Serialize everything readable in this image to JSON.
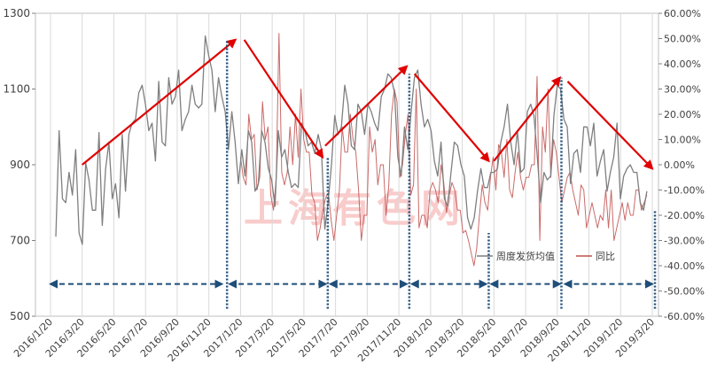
{
  "chart_data": {
    "type": "line",
    "title": "",
    "xlabel": "",
    "ylabel": "",
    "y_left": {
      "range": [
        500,
        1300
      ],
      "ticks": [
        500,
        700,
        900,
        1100,
        1300
      ]
    },
    "y_right": {
      "range": [
        -60,
        60
      ],
      "ticks": [
        -60,
        -50,
        -40,
        -30,
        -20,
        -10,
        0,
        10,
        20,
        30,
        40,
        50,
        60
      ],
      "tick_labels": [
        "-60.00%",
        "-50.00%",
        "-40.00%",
        "-30.00%",
        "-20.00%",
        "-10.00%",
        "0.00%",
        "10.00%",
        "20.00%",
        "30.00%",
        "40.00%",
        "50.00%",
        "60.00%"
      ]
    },
    "x_tick_labels": [
      "2016/1/20",
      "2016/3/20",
      "2016/5/20",
      "2016/7/20",
      "2016/9/20",
      "2016/11/20",
      "2017/1/20",
      "2017/3/20",
      "2017/5/20",
      "2017/7/20",
      "2017/9/20",
      "2017/11/20",
      "2018/1/20",
      "2018/3/20",
      "2018/5/20",
      "2018/7/20",
      "2018/9/20",
      "2018/11/20",
      "2019/1/20",
      "2019/3/20"
    ],
    "grid": "vertical",
    "legend_position": "bottom-right",
    "watermark": "上海有色网",
    "series": [
      {
        "name": "周度发货均值",
        "axis": "left",
        "color": "#7f7f7f",
        "values": [
          710,
          990,
          810,
          800,
          880,
          820,
          940,
          720,
          690,
          905,
          860,
          780,
          780,
          985,
          740,
          890,
          960,
          810,
          850,
          760,
          980,
          830,
          980,
          1010,
          1020,
          1090,
          1110,
          1060,
          990,
          1010,
          910,
          1120,
          960,
          950,
          1130,
          1060,
          1080,
          1150,
          990,
          1020,
          1040,
          1110,
          1060,
          1050,
          1060,
          1240,
          1190,
          1150,
          1040,
          1130,
          1080,
          1040,
          940,
          1040,
          960,
          850,
          940,
          870,
          990,
          960,
          830,
          850,
          990,
          960,
          890,
          860,
          790,
          990,
          920,
          940,
          880,
          840,
          850,
          840,
          1010,
          990,
          950,
          960,
          930,
          980,
          940,
          730,
          800,
          900,
          1030,
          980,
          1000,
          1110,
          1060,
          950,
          940,
          1060,
          1040,
          980,
          1060,
          1040,
          1010,
          990,
          1080,
          1100,
          1140,
          1130,
          1090,
          920,
          870,
          1000,
          940,
          1040,
          1130,
          1150,
          1060,
          1000,
          1020,
          990,
          910,
          870,
          960,
          810,
          790,
          880,
          960,
          950,
          900,
          870,
          760,
          730,
          760,
          830,
          890,
          840,
          840,
          880,
          880,
          890,
          960,
          1000,
          1060,
          960,
          900,
          990,
          880,
          890,
          1040,
          1060,
          1030,
          920,
          800,
          880,
          860,
          870,
          1030,
          1110,
          1100,
          1020,
          1000,
          850,
          930,
          940,
          880,
          1000,
          1000,
          950,
          1010,
          870,
          910,
          940,
          830,
          880,
          920,
          1010,
          810,
          870,
          890,
          900,
          880,
          880,
          800,
          780,
          830
        ]
      },
      {
        "name": "同比",
        "axis": "right",
        "color": "#c0504d",
        "values": [
          3,
          -5,
          -8,
          20,
          10,
          12,
          -10,
          -5,
          25,
          10,
          15,
          -12,
          -18,
          -5,
          52,
          -3,
          -8,
          -3,
          15,
          0,
          20,
          3,
          30,
          10,
          5,
          5,
          -12,
          -15,
          -30,
          -25,
          -18,
          -13,
          -11,
          -22,
          -30,
          -20,
          -10,
          15,
          5,
          5,
          20,
          10,
          5,
          -10,
          -30,
          -20,
          -20,
          15,
          5,
          10,
          -8,
          0,
          0,
          -20,
          -8,
          20,
          30,
          25,
          -5,
          0,
          12,
          20,
          -12,
          -8,
          30,
          -25,
          -20,
          -20,
          -25,
          -10,
          -7,
          -10,
          -15,
          0,
          -7,
          -19,
          -12,
          -7,
          -10,
          -18,
          -18,
          -27,
          -26,
          -30,
          -35,
          -40,
          -33,
          -20,
          -8,
          -15,
          -18,
          -5,
          3,
          -10,
          8,
          5,
          -5,
          10,
          -10,
          -13,
          -3,
          5,
          -5,
          -10,
          -5,
          -5,
          0,
          0,
          35,
          -30,
          15,
          5,
          30,
          -5,
          10,
          5,
          -5,
          -15,
          -10,
          -5,
          -3,
          -10,
          -15,
          -20,
          -8,
          -10,
          -25,
          -20,
          -15,
          -20,
          -25,
          -20,
          -22,
          -10,
          -25,
          -10,
          -30,
          -25,
          -20,
          -15,
          -22,
          -15,
          -20,
          -20,
          -10,
          -10,
          -18,
          -15,
          -12
        ]
      }
    ],
    "annotations": [
      {
        "type": "arrow",
        "color": "#e00000",
        "from": [
          "2016/3/20",
          900
        ],
        "to": [
          "2017/1/10",
          1230
        ]
      },
      {
        "type": "arrow",
        "color": "#e00000",
        "from": [
          "2017/1/27",
          1230
        ],
        "to": [
          "2017/6/25",
          920
        ]
      },
      {
        "type": "arrow",
        "color": "#e00000",
        "from": [
          "2017/6/30",
          950
        ],
        "to": [
          "2017/12/5",
          1160
        ]
      },
      {
        "type": "arrow",
        "color": "#e00000",
        "from": [
          "2017/12/20",
          1140
        ],
        "to": [
          "2018/5/10",
          910
        ]
      },
      {
        "type": "arrow",
        "color": "#e00000",
        "from": [
          "2018/5/20",
          910
        ],
        "to": [
          "2018/9/25",
          1130
        ]
      },
      {
        "type": "arrow",
        "color": "#e00000",
        "from": [
          "2018/10/10",
          1120
        ],
        "to": [
          "2019/3/20",
          890
        ]
      },
      {
        "type": "vline",
        "color": "#1f4e79",
        "date": "2016/12/25",
        "from": 520,
        "to": 1230
      },
      {
        "type": "vline",
        "color": "#1f4e79",
        "date": "2017/7/5",
        "from": 520,
        "to": 920
      },
      {
        "type": "vline",
        "color": "#1f4e79",
        "date": "2017/12/10",
        "from": 520,
        "to": 1140
      },
      {
        "type": "vline",
        "color": "#1f4e79",
        "date": "2018/5/10",
        "from": 520,
        "to": 720
      },
      {
        "type": "vline",
        "color": "#1f4e79",
        "date": "2018/9/28",
        "from": 520,
        "to": 1130
      },
      {
        "type": "vline",
        "color": "#1f4e79",
        "date": "2019/3/25",
        "from": 520,
        "to": 780
      },
      {
        "type": "double-arrow",
        "color": "#1f4e79",
        "from": "2016/1/20",
        "to": "2016/12/15",
        "y": 585
      },
      {
        "type": "double-arrow",
        "color": "#1f4e79",
        "from": "2016/12/30",
        "to": "2017/7/1",
        "y": 585
      },
      {
        "type": "double-arrow",
        "color": "#1f4e79",
        "from": "2017/7/10",
        "to": "2017/12/5",
        "y": 585
      },
      {
        "type": "double-arrow",
        "color": "#1f4e79",
        "from": "2017/12/15",
        "to": "2018/5/5",
        "y": 585
      },
      {
        "type": "double-arrow",
        "color": "#1f4e79",
        "from": "2018/5/15",
        "to": "2018/9/25",
        "y": 585
      },
      {
        "type": "double-arrow",
        "color": "#1f4e79",
        "from": "2018/10/5",
        "to": "2019/3/20",
        "y": 585
      }
    ]
  }
}
